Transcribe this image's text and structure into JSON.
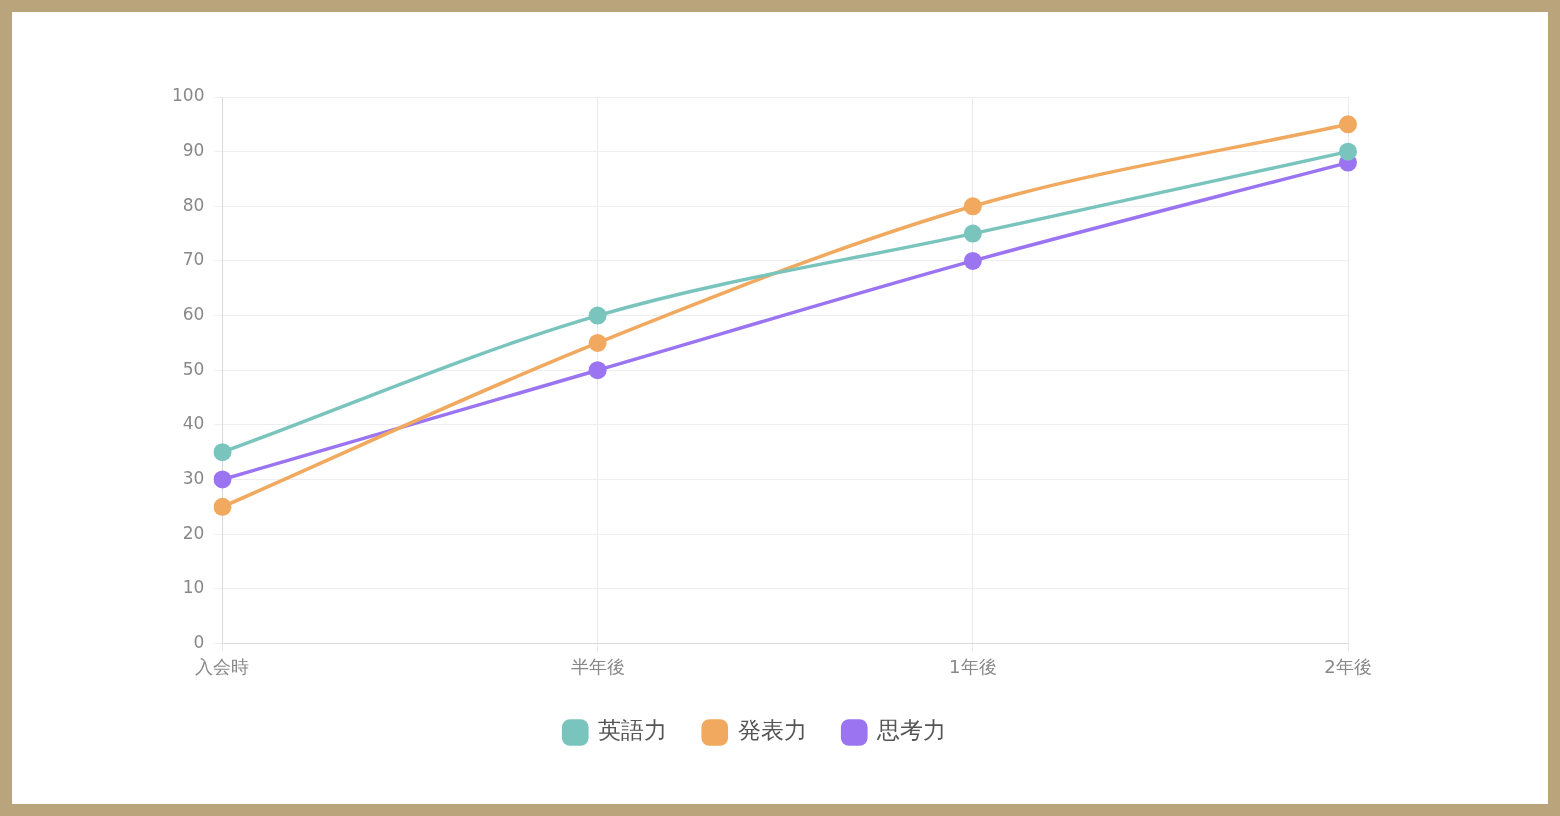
{
  "chart_data": {
    "type": "line",
    "categories": [
      "入会時",
      "半年後",
      "1年後",
      "2年後"
    ],
    "series": [
      {
        "name": "英語力",
        "color": "#79c4bd",
        "values": [
          35,
          60,
          75,
          90
        ]
      },
      {
        "name": "発表力",
        "color": "#f0a95e",
        "values": [
          25,
          55,
          80,
          95
        ]
      },
      {
        "name": "思考力",
        "color": "#9b74f2",
        "values": [
          30,
          50,
          70,
          88
        ]
      }
    ],
    "ylim": [
      0,
      100
    ],
    "yticks": [
      0,
      10,
      20,
      30,
      40,
      50,
      60,
      70,
      80,
      90,
      100
    ],
    "grid": true,
    "legend": "bottom",
    "marker": "circle",
    "line_style": "solid"
  }
}
